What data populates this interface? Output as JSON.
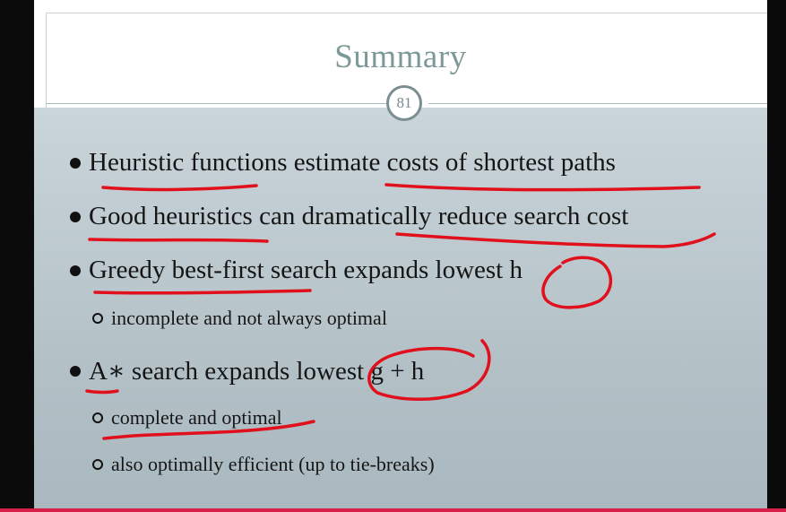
{
  "slide": {
    "title": "Summary",
    "page_number": "81",
    "bullets": [
      {
        "text": "Heuristic functions estimate costs of shortest paths"
      },
      {
        "text": "Good heuristics can dramatically reduce search cost"
      },
      {
        "text": "Greedy best-first search expands lowest h",
        "sub": [
          "incomplete and not always optimal"
        ]
      },
      {
        "text": "A∗ search expands lowest g + h",
        "sub": [
          "complete and optimal",
          "also optimally efficient (up to tie-breaks)"
        ]
      }
    ]
  },
  "colors": {
    "title": "#7b9a97",
    "annotation_ink": "#e0101c",
    "slide_background": "#c3cfd4",
    "progress_bar": "#d81f4a"
  },
  "icons": {
    "bullet": "filled-circle-bullet",
    "sub_bullet": "hollow-circle-bullet"
  }
}
